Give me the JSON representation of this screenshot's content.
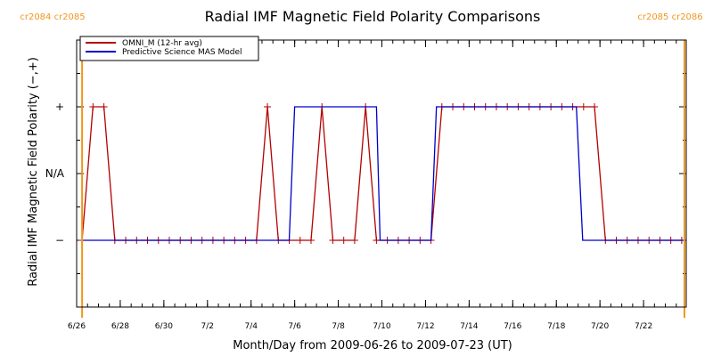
{
  "chart_data": {
    "type": "line",
    "title": "Radial IMF Magnetic Field Polarity Comparisons",
    "xlabel": "Month/Day from 2009-06-26 to 2009-07-23 (UT)",
    "ylabel": "Radial IMF Magnetic Field Polarity (−,+)",
    "x_tick_labels": [
      "6/26",
      "6/28",
      "6/30",
      "7/2",
      "7/4",
      "7/6",
      "7/8",
      "7/10",
      "7/12",
      "7/14",
      "7/16",
      "7/18",
      "7/20",
      "7/22"
    ],
    "y_tick_labels": [
      "−",
      "N/A",
      "+"
    ],
    "xlim": [
      "2009-06-26",
      "2009-07-23T23:00"
    ],
    "ylim": [
      -2,
      2
    ],
    "grid": false,
    "legend_position": "top-left",
    "carrington_markers": [
      {
        "x": "2009-06-26T06:00",
        "labels": [
          "cr2084",
          "cr2085"
        ]
      },
      {
        "x": "2009-07-23T21:00",
        "labels": [
          "cr2085",
          "cr2086"
        ]
      }
    ],
    "series": [
      {
        "name": "OMNI_M (12-hr avg)",
        "color": "#b40000",
        "markers": "plus",
        "points": [
          [
            "2009-06-26T06:00",
            -1
          ],
          [
            "2009-06-26T18:00",
            1
          ],
          [
            "2009-06-27T06:00",
            1
          ],
          [
            "2009-06-27T18:00",
            -1
          ],
          [
            "2009-06-28T06:00",
            -1
          ],
          [
            "2009-06-28T18:00",
            -1
          ],
          [
            "2009-06-29T06:00",
            -1
          ],
          [
            "2009-06-29T18:00",
            -1
          ],
          [
            "2009-06-30T06:00",
            -1
          ],
          [
            "2009-06-30T18:00",
            -1
          ],
          [
            "2009-07-01T06:00",
            -1
          ],
          [
            "2009-07-01T18:00",
            -1
          ],
          [
            "2009-07-02T06:00",
            -1
          ],
          [
            "2009-07-02T18:00",
            -1
          ],
          [
            "2009-07-03T06:00",
            -1
          ],
          [
            "2009-07-03T18:00",
            -1
          ],
          [
            "2009-07-04T06:00",
            -1
          ],
          [
            "2009-07-04T18:00",
            1
          ],
          [
            "2009-07-05T06:00",
            -1
          ],
          [
            "2009-07-05T18:00",
            -1
          ],
          [
            "2009-07-06T06:00",
            -1
          ],
          [
            "2009-07-06T18:00",
            -1
          ],
          [
            "2009-07-07T06:00",
            1
          ],
          [
            "2009-07-07T18:00",
            -1
          ],
          [
            "2009-07-08T06:00",
            -1
          ],
          [
            "2009-07-08T18:00",
            -1
          ],
          [
            "2009-07-09T06:00",
            1
          ],
          [
            "2009-07-09T18:00",
            -1
          ],
          [
            "2009-07-10T06:00",
            -1
          ],
          [
            "2009-07-10T18:00",
            -1
          ],
          [
            "2009-07-11T06:00",
            -1
          ],
          [
            "2009-07-11T18:00",
            -1
          ],
          [
            "2009-07-12T06:00",
            -1
          ],
          [
            "2009-07-12T18:00",
            1
          ],
          [
            "2009-07-13T06:00",
            1
          ],
          [
            "2009-07-13T18:00",
            1
          ],
          [
            "2009-07-14T06:00",
            1
          ],
          [
            "2009-07-14T18:00",
            1
          ],
          [
            "2009-07-15T06:00",
            1
          ],
          [
            "2009-07-15T18:00",
            1
          ],
          [
            "2009-07-16T06:00",
            1
          ],
          [
            "2009-07-16T18:00",
            1
          ],
          [
            "2009-07-17T06:00",
            1
          ],
          [
            "2009-07-17T18:00",
            1
          ],
          [
            "2009-07-18T06:00",
            1
          ],
          [
            "2009-07-18T18:00",
            1
          ],
          [
            "2009-07-19T06:00",
            1
          ],
          [
            "2009-07-19T18:00",
            1
          ],
          [
            "2009-07-20T06:00",
            -1
          ],
          [
            "2009-07-20T18:00",
            -1
          ],
          [
            "2009-07-21T06:00",
            -1
          ],
          [
            "2009-07-21T18:00",
            -1
          ],
          [
            "2009-07-22T06:00",
            -1
          ],
          [
            "2009-07-22T18:00",
            -1
          ],
          [
            "2009-07-23T06:00",
            -1
          ],
          [
            "2009-07-23T18:00",
            -1
          ]
        ]
      },
      {
        "name": "Predictive Science MAS Model",
        "color": "#0000cc",
        "markers": "none",
        "points": [
          [
            "2009-06-26T06:00",
            -1
          ],
          [
            "2009-07-05T18:00",
            -1
          ],
          [
            "2009-07-06T00:00",
            1
          ],
          [
            "2009-07-09T18:00",
            1
          ],
          [
            "2009-07-09T22:00",
            -1
          ],
          [
            "2009-07-12T06:00",
            -1
          ],
          [
            "2009-07-12T12:00",
            1
          ],
          [
            "2009-07-18T22:00",
            1
          ],
          [
            "2009-07-19T05:00",
            -1
          ],
          [
            "2009-07-23T21:00",
            -1
          ]
        ]
      }
    ]
  }
}
